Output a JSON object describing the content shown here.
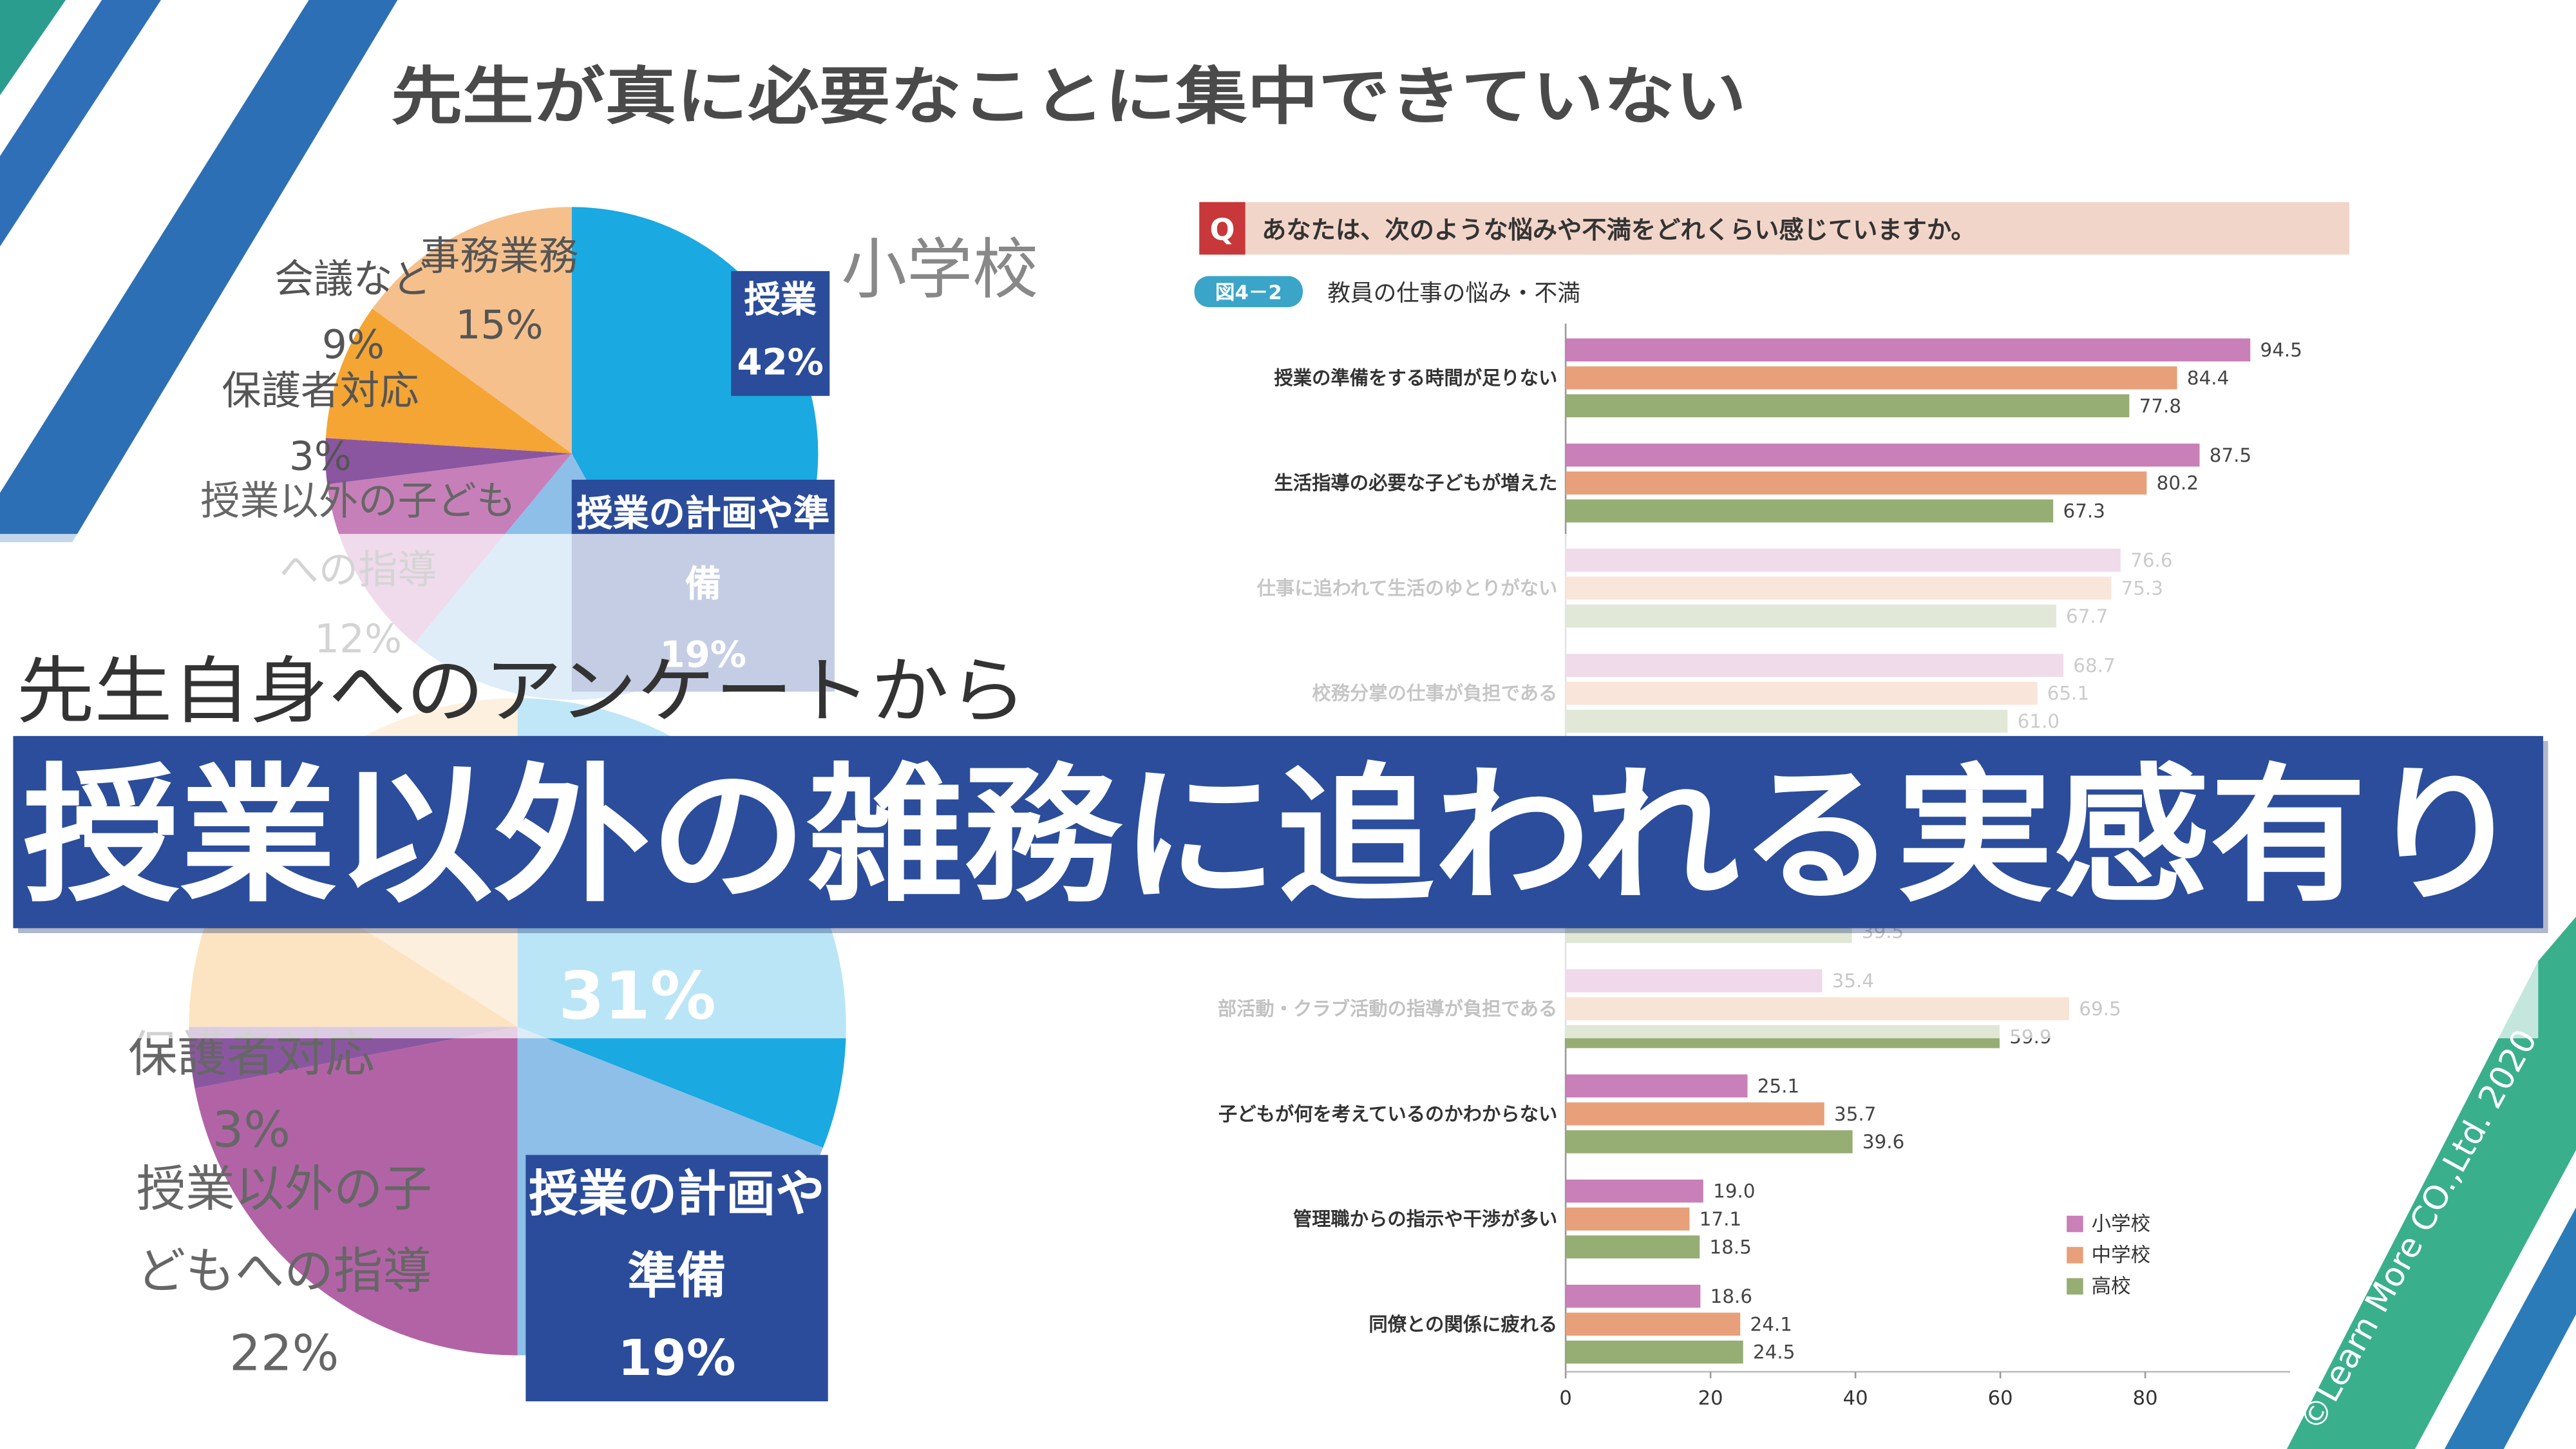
{
  "slide": {
    "title": "先生が真に必要なことに集中できていない",
    "subtitle": "先生自身へのアンケートから",
    "banner": "授業以外の雑務に追われる実感有り",
    "copyright": "©Learn More CO.,Ltd. 2020"
  },
  "chart_data": [
    {
      "type": "pie",
      "title": "小学校",
      "categories": [
        "授業",
        "授業の計画や準備",
        "授業以外の子どもへの指導",
        "保護者対応",
        "会議など",
        "事務業務"
      ],
      "values": [
        42,
        19,
        12,
        3,
        9,
        15
      ],
      "value_labels": [
        "42%",
        "19%",
        "12%",
        "3%",
        "9%",
        "15%"
      ],
      "colors": [
        "#1aa9e0",
        "#8dbfe8",
        "#c77fb9",
        "#8b56a0",
        "#f4a533",
        "#f6c08c"
      ]
    },
    {
      "type": "pie",
      "categories": [
        null,
        "授業の計画や準備",
        "授業以外の子どもへの指導",
        "保護者対応",
        null,
        null
      ],
      "values": [
        31,
        19,
        22,
        3,
        9,
        16
      ],
      "value_labels": [
        "31%",
        "19%",
        "22%",
        "3%",
        null,
        null
      ],
      "colors": [
        "#1aa9e0",
        "#8dbfe8",
        "#b263a6",
        "#8b56a0",
        "#f4a533",
        "#f8c98e"
      ]
    },
    {
      "type": "bar",
      "orientation": "horizontal",
      "question_mark": "Q",
      "question": "あなたは、次のような悩みや不満をどれくらい感じていますか。",
      "figure_label": "図4－2",
      "title": "教員の仕事の悩み・不満",
      "categories": [
        "授業の準備をする時間が足りない",
        "生活指導の必要な子どもが増えた",
        "仕事に追われて生活のゆとりがない",
        "校務分掌の仕事が負担である",
        null,
        null,
        "部活動・クラブ活動の指導が負担である",
        "子どもが何を考えているのかわからない",
        "管理職からの指示や干渉が多い",
        "同僚との関係に疲れる"
      ],
      "series": [
        {
          "name": "小学校",
          "color": "#c97fb8",
          "values": [
            94.5,
            87.5,
            76.6,
            68.7,
            null,
            null,
            35.4,
            25.1,
            19.0,
            18.6
          ],
          "value_labels": [
            "94.5",
            "87.5",
            "76.6",
            "68.7",
            null,
            null,
            "35.4",
            "25.1",
            "19.0",
            "18.6"
          ]
        },
        {
          "name": "中学校",
          "color": "#e8a07a",
          "values": [
            84.4,
            80.2,
            75.3,
            65.1,
            null,
            null,
            69.5,
            35.7,
            17.1,
            24.1
          ],
          "value_labels": [
            "84.4",
            "80.2",
            "75.3",
            "65.1",
            null,
            null,
            "69.5",
            "35.7",
            "17.1",
            "24.1"
          ]
        },
        {
          "name": "高校",
          "color": "#96ad74",
          "values": [
            77.8,
            67.3,
            67.7,
            61.0,
            null,
            39.5,
            59.9,
            39.6,
            18.5,
            24.5
          ],
          "value_labels": [
            "77.8",
            "67.3",
            "67.7",
            "61.0",
            null,
            "39.5",
            "59.9",
            "39.6",
            "18.5",
            "24.5"
          ]
        }
      ],
      "xlim": [
        0,
        100
      ],
      "xticks": [
        0,
        20,
        40,
        60,
        80
      ],
      "legend": "bottom-right"
    }
  ]
}
